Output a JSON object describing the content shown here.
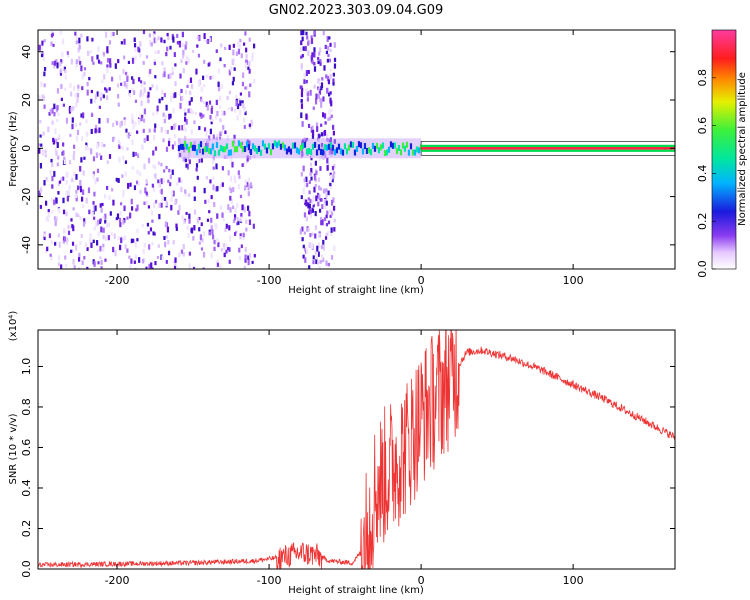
{
  "title": "GN02.2023.303.09.04.G09",
  "chart_data": [
    {
      "type": "heatmap",
      "xlabel": "Height of straight line (km)",
      "ylabel": "Frequency (Hz)",
      "xlim": [
        -252,
        167
      ],
      "ylim": [
        -50,
        49
      ],
      "x_ticks": [
        -200,
        -100,
        0,
        100
      ],
      "y_ticks": [
        -40,
        -20,
        0,
        20,
        40
      ],
      "colorbar": {
        "label": "Normalized spectral amplitude",
        "range": [
          0,
          1
        ],
        "ticks": [
          0.0,
          0.2,
          0.4,
          0.6,
          0.8
        ],
        "colormap": "rainbow (white-violet-blue-cyan-green-yellow-red-magenta)"
      },
      "features": [
        {
          "description": "scattered noise",
          "x_range": [
            -252,
            -110
          ],
          "freq_range": [
            -50,
            49
          ]
        },
        {
          "description": "noise band",
          "x_range": [
            -80,
            -57
          ],
          "freq_range": [
            -50,
            49
          ]
        },
        {
          "description": "signal line",
          "x_range": [
            -160,
            167
          ],
          "freq_center": 0
        }
      ]
    },
    {
      "type": "line",
      "xlabel": "Height of straight line (km)",
      "ylabel": "SNR (10 * v/v)",
      "y_multiplier": "(x10⁴)",
      "xlim": [
        -252,
        167
      ],
      "ylim": [
        0,
        1.18
      ],
      "x_ticks": [
        -200,
        -100,
        0,
        100
      ],
      "y_ticks": [
        0.0,
        0.2,
        0.4,
        0.6,
        0.8,
        1.0
      ],
      "color": "#ee3333",
      "x": [
        -252,
        -200,
        -150,
        -110,
        -90,
        -80,
        -70,
        -60,
        -45,
        -38,
        -30,
        -20,
        -10,
        0,
        10,
        20,
        30,
        40,
        60,
        80,
        100,
        120,
        140,
        167
      ],
      "values": [
        0.02,
        0.025,
        0.03,
        0.04,
        0.06,
        0.08,
        0.07,
        0.04,
        0.03,
        0.1,
        0.4,
        0.5,
        0.6,
        0.75,
        0.85,
        0.95,
        1.07,
        1.08,
        1.04,
        0.98,
        0.91,
        0.84,
        0.76,
        0.65
      ]
    }
  ]
}
